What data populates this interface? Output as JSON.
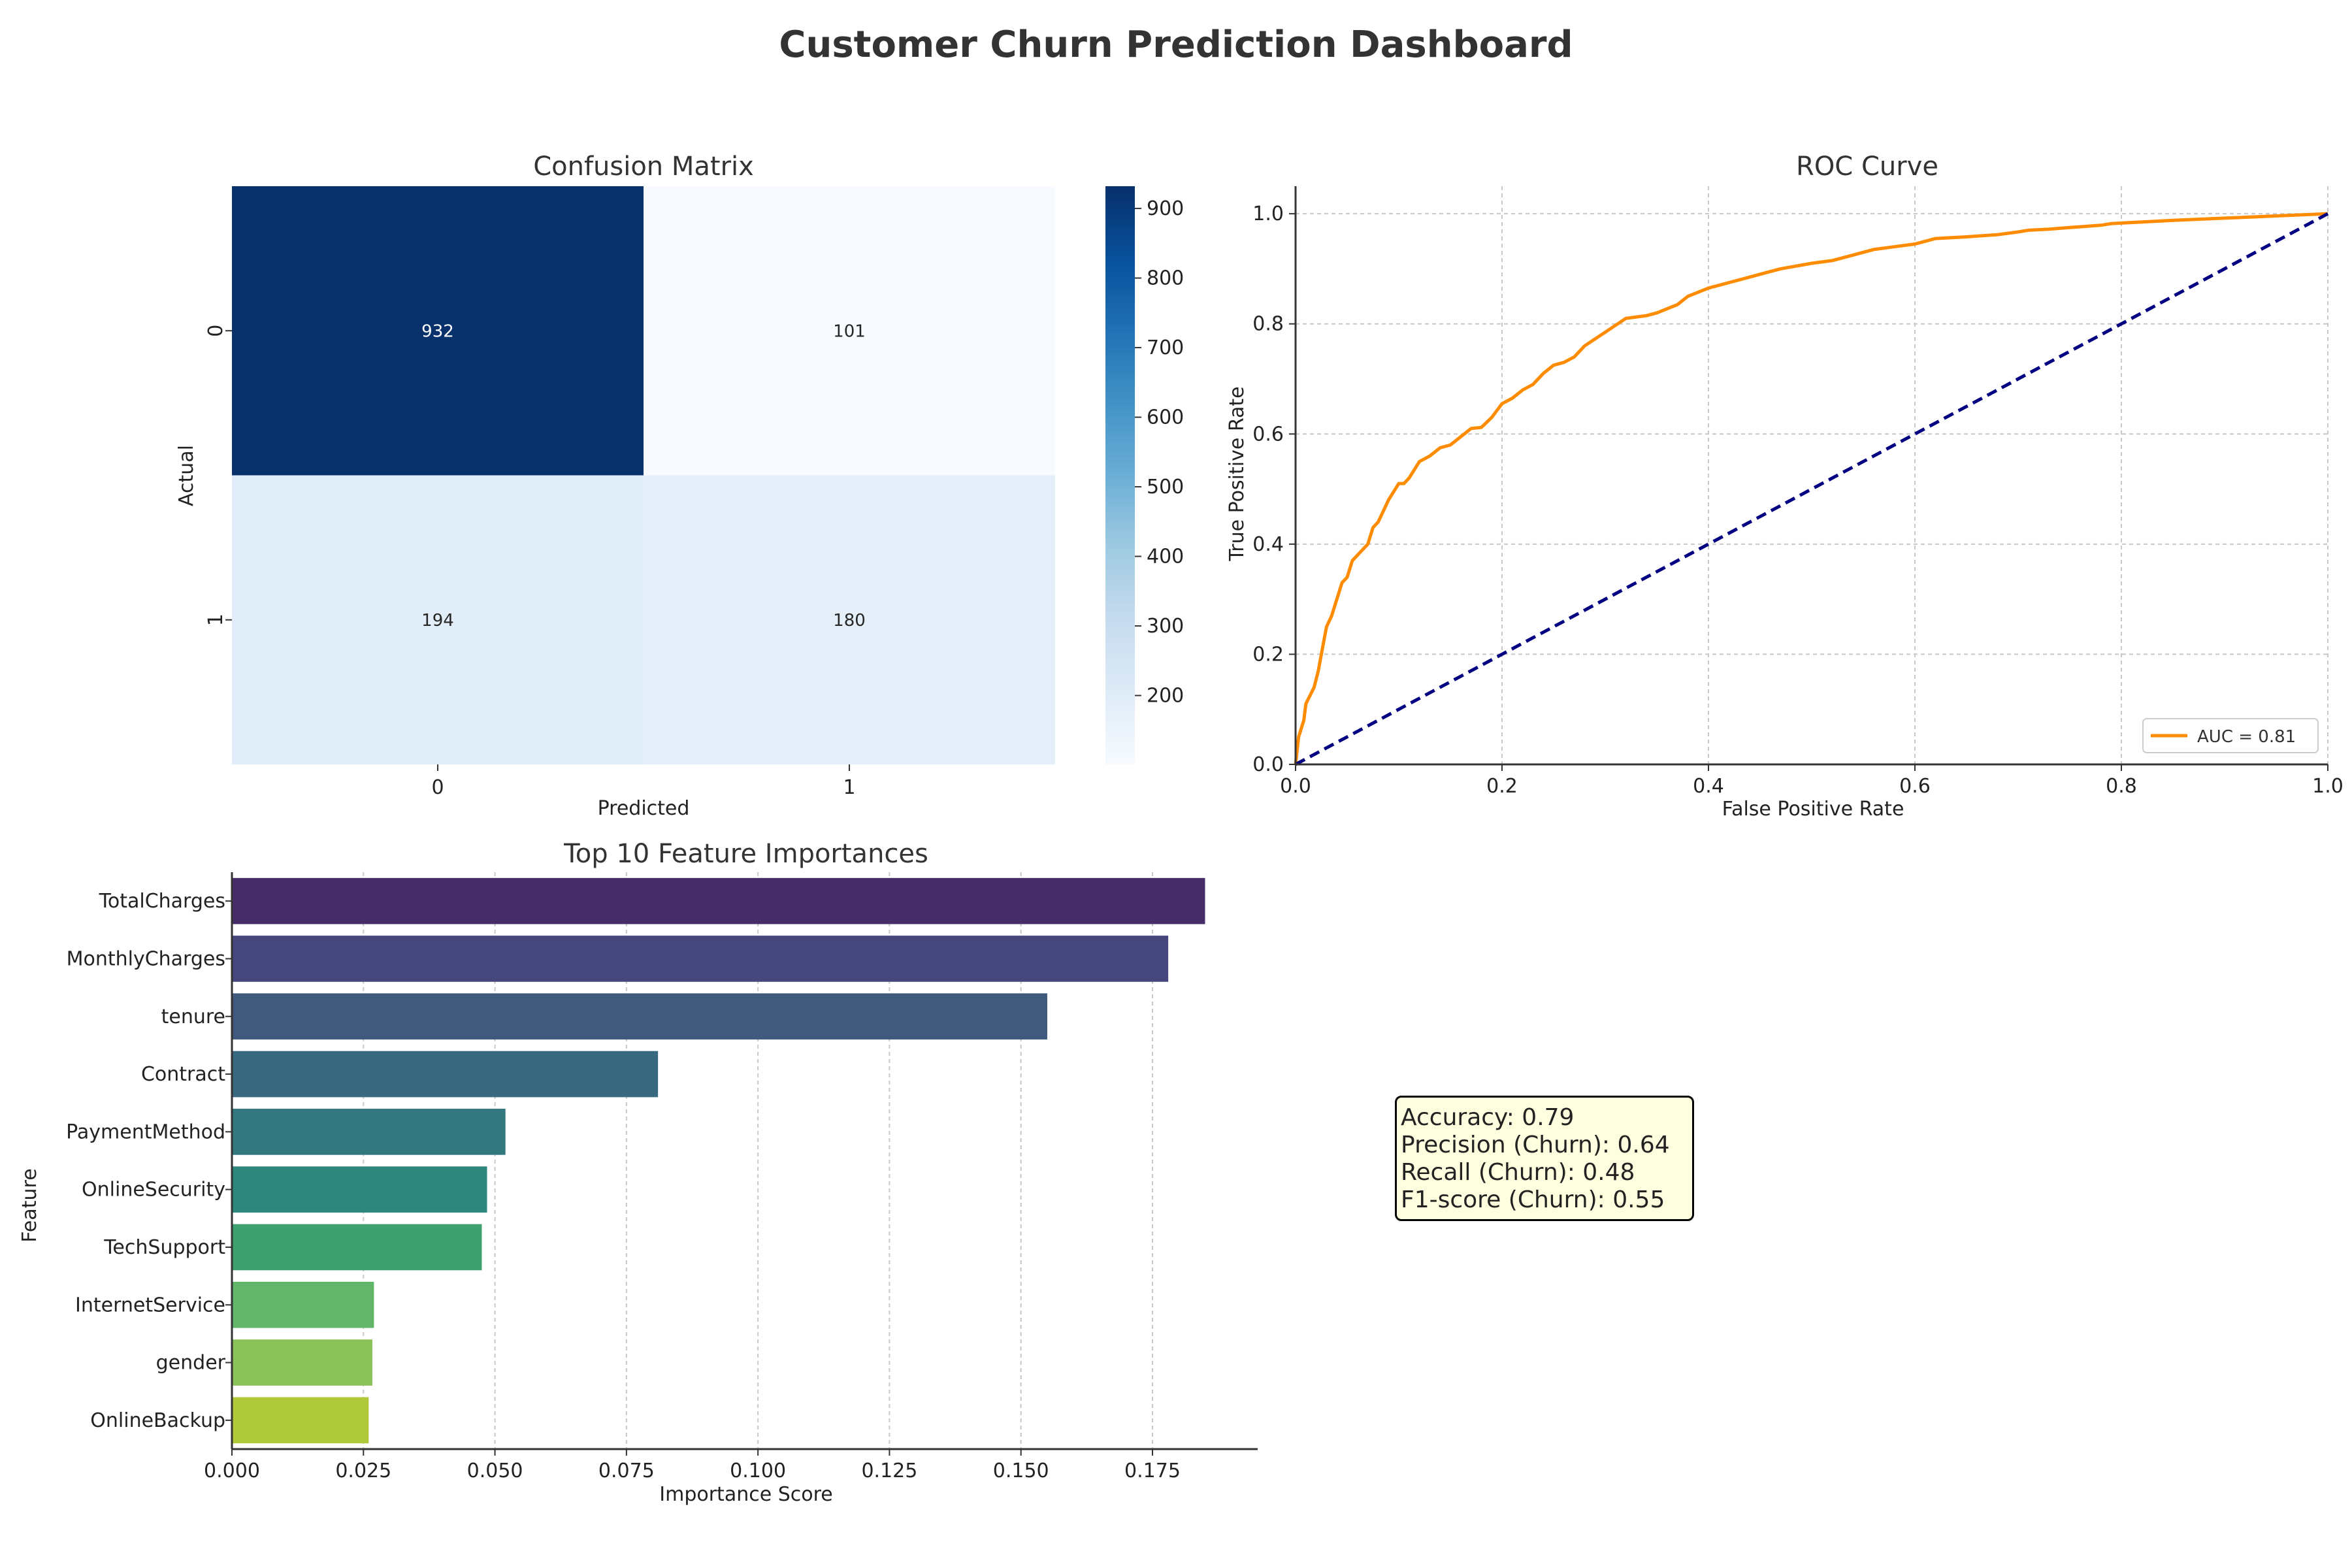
{
  "page": {
    "title": "Customer Churn Prediction Dashboard"
  },
  "colors": {
    "title_text": "#333333",
    "roc_curve": "#ff8c00",
    "chance_line": "#000080",
    "heatmap_low": "#f7fbff",
    "heatmap_high": "#08306b",
    "metrics_box_bg": "#ffffe0"
  },
  "chart_data": [
    {
      "type": "heatmap",
      "title": "Confusion Matrix",
      "xlabel": "Predicted",
      "ylabel": "Actual",
      "x_categories": [
        "0",
        "1"
      ],
      "y_categories": [
        "0",
        "1"
      ],
      "values": [
        [
          932,
          101
        ],
        [
          194,
          180
        ]
      ],
      "colorbar": {
        "ticks": [
          "200",
          "300",
          "400",
          "500",
          "600",
          "700",
          "800",
          "900"
        ],
        "range": [
          101,
          932
        ],
        "colormap": "Blues"
      }
    },
    {
      "type": "line",
      "title": "ROC Curve",
      "xlabel": "False Positive Rate",
      "ylabel": "True Positive Rate",
      "xlim": [
        0,
        1
      ],
      "ylim": [
        0,
        1.05
      ],
      "xticks": [
        "0.0",
        "0.2",
        "0.4",
        "0.6",
        "0.8",
        "1.0"
      ],
      "yticks": [
        "0.0",
        "0.2",
        "0.4",
        "0.6",
        "0.8",
        "1.0"
      ],
      "grid": true,
      "legend": "lower-right",
      "series": [
        {
          "name": "AUC = 0.81",
          "color": "#ff8c00",
          "x": [
            0,
            0.003,
            0.008,
            0.01,
            0.018,
            0.022,
            0.025,
            0.028,
            0.03,
            0.035,
            0.04,
            0.045,
            0.05,
            0.055,
            0.06,
            0.07,
            0.075,
            0.08,
            0.085,
            0.09,
            0.1,
            0.105,
            0.11,
            0.12,
            0.13,
            0.14,
            0.15,
            0.16,
            0.17,
            0.18,
            0.19,
            0.2,
            0.21,
            0.22,
            0.23,
            0.24,
            0.25,
            0.26,
            0.27,
            0.28,
            0.3,
            0.32,
            0.34,
            0.35,
            0.37,
            0.38,
            0.4,
            0.42,
            0.44,
            0.46,
            0.47,
            0.5,
            0.52,
            0.54,
            0.56,
            0.58,
            0.6,
            0.62,
            0.65,
            0.68,
            0.7,
            0.71,
            0.73,
            0.75,
            0.78,
            0.79,
            0.82,
            0.85,
            0.9,
            0.95,
            1.0
          ],
          "y": [
            0,
            0.05,
            0.08,
            0.11,
            0.14,
            0.17,
            0.2,
            0.23,
            0.25,
            0.27,
            0.3,
            0.33,
            0.34,
            0.37,
            0.38,
            0.4,
            0.43,
            0.44,
            0.46,
            0.48,
            0.51,
            0.51,
            0.52,
            0.55,
            0.56,
            0.575,
            0.58,
            0.595,
            0.61,
            0.612,
            0.63,
            0.655,
            0.665,
            0.68,
            0.69,
            0.71,
            0.725,
            0.73,
            0.74,
            0.76,
            0.785,
            0.81,
            0.815,
            0.82,
            0.835,
            0.85,
            0.865,
            0.875,
            0.885,
            0.895,
            0.9,
            0.91,
            0.915,
            0.925,
            0.935,
            0.94,
            0.945,
            0.955,
            0.958,
            0.962,
            0.967,
            0.97,
            0.972,
            0.975,
            0.979,
            0.982,
            0.985,
            0.988,
            0.992,
            0.996,
            1.0
          ]
        },
        {
          "name": "",
          "color": "#000080",
          "dashed": true,
          "x": [
            0,
            1
          ],
          "y": [
            0,
            1
          ]
        }
      ]
    },
    {
      "type": "bar",
      "orientation": "horizontal",
      "title": "Top 10 Feature Importances",
      "xlabel": "Importance Score",
      "ylabel": "Feature",
      "categories": [
        "TotalCharges",
        "MonthlyCharges",
        "tenure",
        "Contract",
        "PaymentMethod",
        "OnlineSecurity",
        "TechSupport",
        "InternetService",
        "gender",
        "OnlineBackup"
      ],
      "values": [
        0.185,
        0.178,
        0.155,
        0.081,
        0.052,
        0.0485,
        0.0475,
        0.027,
        0.0267,
        0.026
      ],
      "xlim": [
        0,
        0.195
      ],
      "xticks": [
        "0.000",
        "0.025",
        "0.050",
        "0.075",
        "0.100",
        "0.125",
        "0.150",
        "0.175"
      ],
      "grid": true,
      "colors": [
        "#472d68",
        "#46477c",
        "#405a7e",
        "#39697f",
        "#33777f",
        "#2d877c",
        "#3ca06f",
        "#62b66a",
        "#8ac35a",
        "#b0c93a"
      ]
    }
  ],
  "metrics": {
    "lines": [
      "Accuracy: 0.79",
      "Precision (Churn): 0.64",
      "Recall (Churn): 0.48",
      "F1-score (Churn): 0.55"
    ]
  }
}
